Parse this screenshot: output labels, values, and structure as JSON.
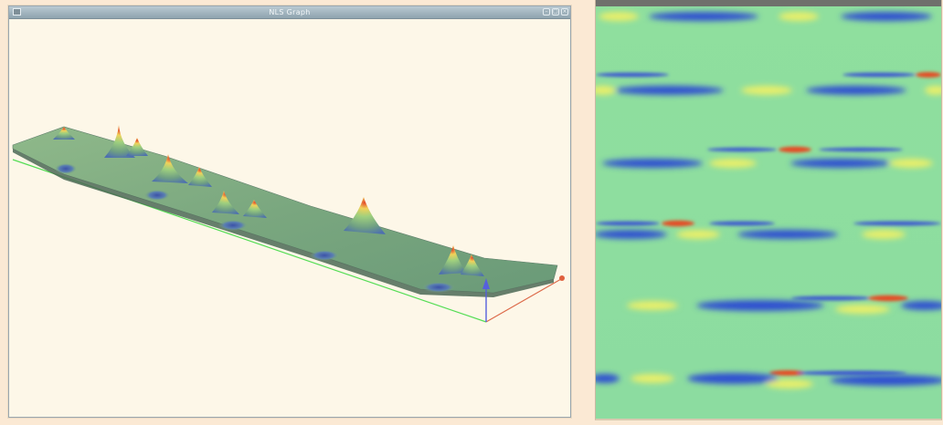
{
  "window": {
    "title": "NLS Graph",
    "buttons": {
      "minimize": "–",
      "maximize": "▢",
      "close": "×"
    }
  },
  "colors": {
    "background": "#fdf7e8",
    "surface": "#7fae86",
    "axis_x": "#55dd55",
    "axis_y": "#dd6a4a",
    "axis_z": "#5560dd",
    "heat_base": "#8fdf9e",
    "heat_low": "#2a44c8",
    "heat_high": "#e33b1c"
  },
  "icons": {
    "window_menu": "window-menu-icon",
    "axis_arrow": "axis-arrow-icon"
  }
}
